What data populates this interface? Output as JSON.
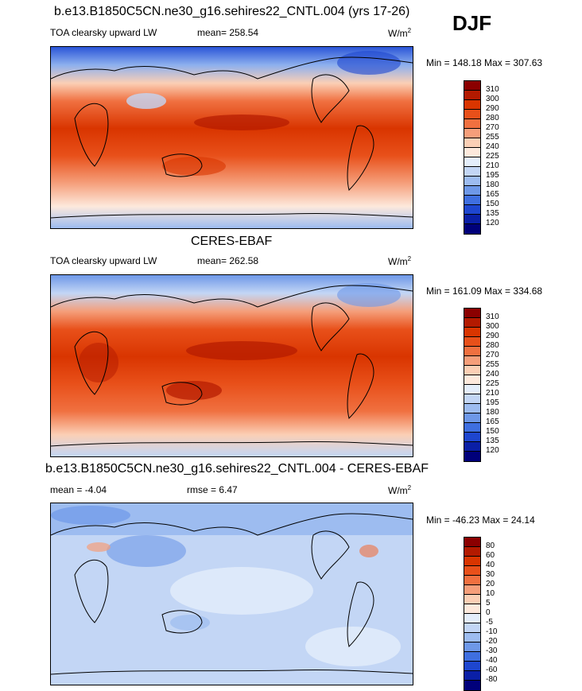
{
  "season": "DJF",
  "panels": [
    {
      "title": "b.e13.B1850C5CN.ne30_g16.sehires22_CNTL.004 (yrs 17-26)",
      "left_label": "TOA clearsky upward LW",
      "mean_text": "mean= 258.54",
      "rmse_text": "",
      "units": "W/m",
      "units_sup": "2",
      "minmax": "Min = 148.18 Max = 307.63",
      "colorbar": {
        "labels": [
          "310",
          "300",
          "290",
          "280",
          "270",
          "255",
          "240",
          "225",
          "210",
          "195",
          "180",
          "165",
          "150",
          "135",
          "120"
        ],
        "colors": [
          "#8b0000",
          "#b31a00",
          "#d93500",
          "#e8501a",
          "#f07040",
          "#f59e7a",
          "#fbcfb5",
          "#fde9dc",
          "#e4eefb",
          "#c3d6f5",
          "#9dbcf0",
          "#6e98e8",
          "#3f6fe0",
          "#1e46cf",
          "#0a1fa6",
          "#00007a"
        ]
      }
    },
    {
      "title": "CERES-EBAF",
      "left_label": "TOA clearsky upward LW",
      "mean_text": "mean= 262.58",
      "rmse_text": "",
      "units": "W/m",
      "units_sup": "2",
      "minmax": "Min = 161.09 Max = 334.68",
      "colorbar": {
        "labels": [
          "310",
          "300",
          "290",
          "280",
          "270",
          "255",
          "240",
          "225",
          "210",
          "195",
          "180",
          "165",
          "150",
          "135",
          "120"
        ],
        "colors": [
          "#8b0000",
          "#b31a00",
          "#d93500",
          "#e8501a",
          "#f07040",
          "#f59e7a",
          "#fbcfb5",
          "#fde9dc",
          "#e4eefb",
          "#c3d6f5",
          "#9dbcf0",
          "#6e98e8",
          "#3f6fe0",
          "#1e46cf",
          "#0a1fa6",
          "#00007a"
        ]
      }
    },
    {
      "title": "b.e13.B1850C5CN.ne30_g16.sehires22_CNTL.004 - CERES-EBAF",
      "left_label": "mean =  -4.04",
      "mean_text": "rmse =   6.47",
      "rmse_text": "",
      "units": "W/m",
      "units_sup": "2",
      "minmax": "Min = -46.23 Max =  24.14",
      "colorbar": {
        "labels": [
          "80",
          "60",
          "40",
          "30",
          "20",
          "10",
          "5",
          "0",
          "-5",
          "-10",
          "-20",
          "-30",
          "-40",
          "-60",
          "-80"
        ],
        "colors": [
          "#8b0000",
          "#b31a00",
          "#d93500",
          "#e8501a",
          "#f07040",
          "#f59e7a",
          "#fbcfb5",
          "#fde9dc",
          "#e4eefb",
          "#c3d6f5",
          "#9dbcf0",
          "#6e98e8",
          "#3f6fe0",
          "#1e46cf",
          "#0a1fa6",
          "#00007a"
        ]
      }
    }
  ],
  "chart_data": [
    {
      "type": "heatmap",
      "title": "b.e13.B1850C5CN.ne30_g16.sehires22_CNTL.004 (yrs 17-26)",
      "variable": "TOA clearsky upward LW",
      "units": "W/m2",
      "mean": 258.54,
      "min": 148.18,
      "max": 307.63,
      "levels": [
        120,
        135,
        150,
        165,
        180,
        195,
        210,
        225,
        240,
        255,
        270,
        280,
        290,
        300,
        310
      ]
    },
    {
      "type": "heatmap",
      "title": "CERES-EBAF",
      "variable": "TOA clearsky upward LW",
      "units": "W/m2",
      "mean": 262.58,
      "min": 161.09,
      "max": 334.68,
      "levels": [
        120,
        135,
        150,
        165,
        180,
        195,
        210,
        225,
        240,
        255,
        270,
        280,
        290,
        300,
        310
      ]
    },
    {
      "type": "heatmap",
      "title": "b.e13.B1850C5CN.ne30_g16.sehires22_CNTL.004 - CERES-EBAF",
      "units": "W/m2",
      "mean": -4.04,
      "rmse": 6.47,
      "min": -46.23,
      "max": 24.14,
      "levels": [
        -80,
        -60,
        -40,
        -30,
        -20,
        -10,
        -5,
        0,
        5,
        10,
        20,
        30,
        40,
        60,
        80
      ]
    }
  ]
}
